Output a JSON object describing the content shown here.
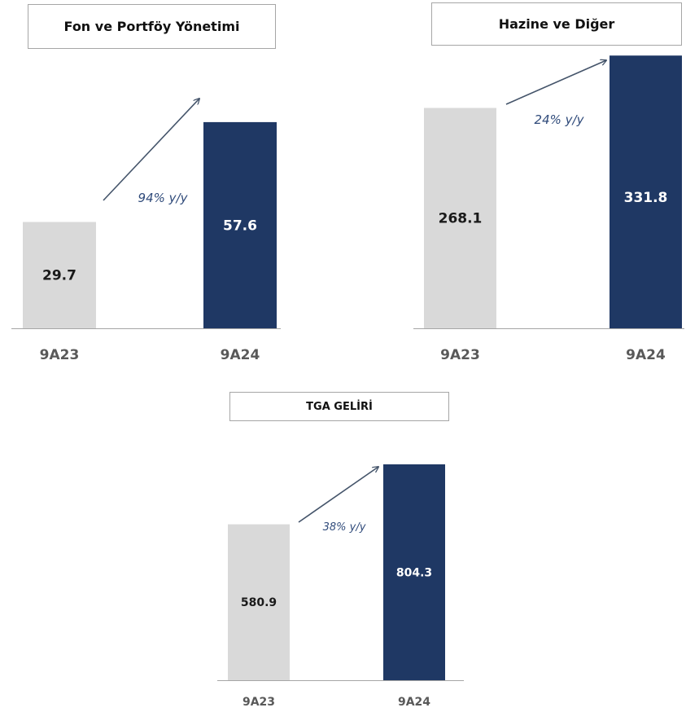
{
  "chart_data": [
    {
      "type": "bar",
      "title": "Fon ve Portföy Yönetimi",
      "categories": [
        "9A23",
        "9A24"
      ],
      "values": [
        29.7,
        57.6
      ],
      "value_labels": [
        "29.7",
        "57.6"
      ],
      "annotation": "94% y/y",
      "colors": [
        "#d9d9d9",
        "#1f3864"
      ],
      "label_colors": [
        "#1a1a1a",
        "#ffffff"
      ],
      "ylim": [
        0,
        66
      ]
    },
    {
      "type": "bar",
      "title": "Hazine ve Diğer",
      "categories": [
        "9A23",
        "9A24"
      ],
      "values": [
        268.1,
        331.8
      ],
      "value_labels": [
        "268.1",
        "331.8"
      ],
      "annotation": "24% y/y",
      "colors": [
        "#d9d9d9",
        "#1f3864"
      ],
      "label_colors": [
        "#1a1a1a",
        "#ffffff"
      ],
      "ylim": [
        0,
        332
      ]
    },
    {
      "type": "bar",
      "title": "TGA GELİRİ",
      "categories": [
        "9A23",
        "9A24"
      ],
      "values": [
        580.9,
        804.3
      ],
      "value_labels": [
        "580.9",
        "804.3"
      ],
      "annotation": "38% y/y",
      "colors": [
        "#d9d9d9",
        "#1f3864"
      ],
      "label_colors": [
        "#1a1a1a",
        "#ffffff"
      ],
      "ylim": [
        0,
        804.3
      ]
    }
  ]
}
